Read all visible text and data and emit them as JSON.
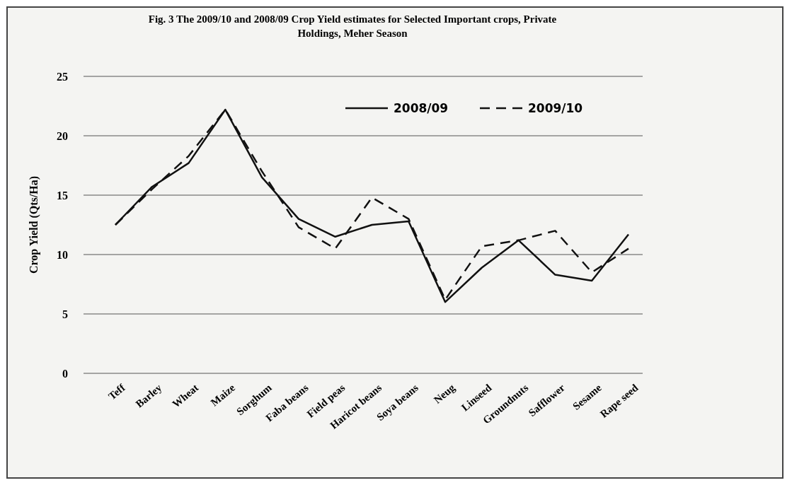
{
  "chart_data": {
    "type": "line",
    "title": "Fig. 3 The 2009/10 and 2008/09 Crop Yield estimates for Selected Important crops, Private Holdings, Meher Season",
    "ylabel": "Crop Yield (Qts/Ha)",
    "categories": [
      "Teff",
      "Barley",
      "Wheat",
      "Maize",
      "Sorghum",
      "Faba beans",
      "Field peas",
      "Haricot beans",
      "Soya beans",
      "Neug",
      "Linseed",
      "Groundnuts",
      "Safflower",
      "Sesame",
      "Rape seed"
    ],
    "series": [
      {
        "name": "2008/09",
        "color": "#111111",
        "line_style": "solid",
        "values": [
          12.5,
          15.7,
          17.7,
          22.2,
          16.5,
          13,
          11.5,
          12.5,
          12.8,
          6,
          8.9,
          11.2,
          8.3,
          7.8,
          11.7
        ]
      },
      {
        "name": "2009/10",
        "color": "#111111",
        "line_style": "dashed",
        "values": [
          12.5,
          15.5,
          18.3,
          22.2,
          17,
          12.3,
          10.5,
          14.8,
          13,
          6.2,
          10.7,
          11.2,
          12,
          8.5,
          10.5
        ]
      }
    ],
    "ylim": [
      0,
      25
    ],
    "yticks": [
      0,
      5,
      10,
      15,
      20,
      25
    ],
    "grid": "y",
    "legend": "top right",
    "marker": "none"
  }
}
